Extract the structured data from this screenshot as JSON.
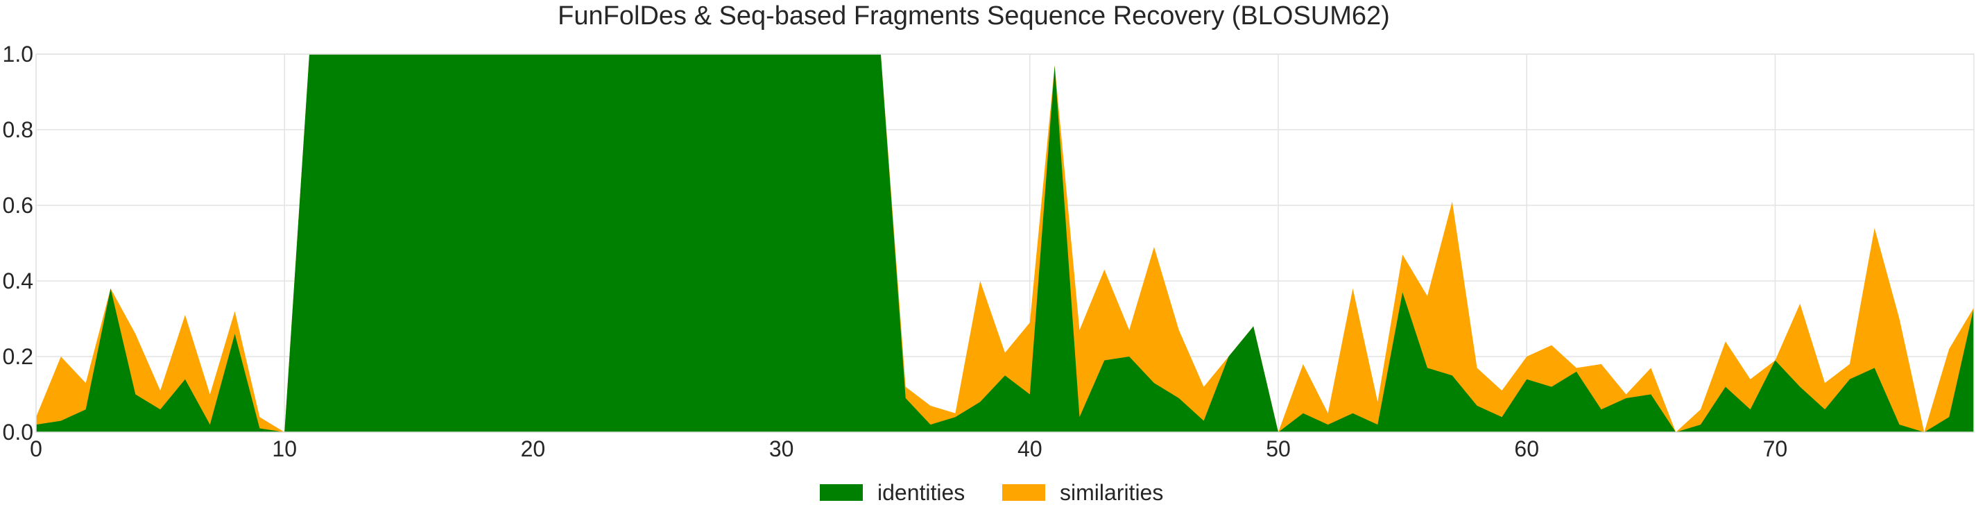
{
  "chart_data": {
    "type": "area",
    "title": "FunFolDes & Seq-based Fragments Sequence Recovery (BLOSUM62)",
    "xlabel": "",
    "ylabel": "",
    "xlim": [
      0,
      78
    ],
    "ylim": [
      0.0,
      1.0
    ],
    "grid": true,
    "legend_position": "bottom-center",
    "x_ticks": [
      0,
      10,
      20,
      30,
      40,
      50,
      60,
      70
    ],
    "y_ticks": [
      0.0,
      0.2,
      0.4,
      0.6,
      0.8,
      1.0
    ],
    "y_tick_labels": [
      "0.0",
      "0.2",
      "0.4",
      "0.6",
      "0.8",
      "1.0"
    ],
    "x": [
      0,
      1,
      2,
      3,
      4,
      5,
      6,
      7,
      8,
      9,
      10,
      11,
      12,
      13,
      14,
      15,
      16,
      17,
      18,
      19,
      20,
      21,
      22,
      23,
      24,
      25,
      26,
      27,
      28,
      29,
      30,
      31,
      32,
      33,
      34,
      35,
      36,
      37,
      38,
      39,
      40,
      41,
      42,
      43,
      44,
      45,
      46,
      47,
      48,
      49,
      50,
      51,
      52,
      53,
      54,
      55,
      56,
      57,
      58,
      59,
      60,
      61,
      62,
      63,
      64,
      65,
      66,
      67,
      68,
      69,
      70,
      71,
      72,
      73,
      74,
      75,
      76,
      77,
      78
    ],
    "series": [
      {
        "name": "similarities",
        "color": "#ffa500",
        "values": [
          0.04,
          0.2,
          0.13,
          0.38,
          0.26,
          0.11,
          0.31,
          0.1,
          0.32,
          0.04,
          0.0,
          1.0,
          1.0,
          1.0,
          1.0,
          1.0,
          1.0,
          1.0,
          1.0,
          1.0,
          1.0,
          1.0,
          1.0,
          1.0,
          1.0,
          1.0,
          1.0,
          1.0,
          1.0,
          1.0,
          1.0,
          1.0,
          1.0,
          1.0,
          1.0,
          0.12,
          0.07,
          0.05,
          0.4,
          0.21,
          0.29,
          0.97,
          0.27,
          0.43,
          0.27,
          0.49,
          0.27,
          0.12,
          0.2,
          0.28,
          0.0,
          0.18,
          0.05,
          0.38,
          0.08,
          0.47,
          0.36,
          0.61,
          0.17,
          0.11,
          0.2,
          0.23,
          0.17,
          0.18,
          0.1,
          0.17,
          0.0,
          0.06,
          0.24,
          0.14,
          0.19,
          0.34,
          0.13,
          0.18,
          0.54,
          0.3,
          0.0,
          0.22,
          0.33
        ]
      },
      {
        "name": "identities",
        "color": "#008000",
        "values": [
          0.02,
          0.03,
          0.06,
          0.38,
          0.1,
          0.06,
          0.14,
          0.02,
          0.26,
          0.01,
          0.0,
          1.0,
          1.0,
          1.0,
          1.0,
          1.0,
          1.0,
          1.0,
          1.0,
          1.0,
          1.0,
          1.0,
          1.0,
          1.0,
          1.0,
          1.0,
          1.0,
          1.0,
          1.0,
          1.0,
          1.0,
          1.0,
          1.0,
          1.0,
          1.0,
          0.09,
          0.02,
          0.04,
          0.08,
          0.15,
          0.1,
          0.97,
          0.04,
          0.19,
          0.2,
          0.13,
          0.09,
          0.03,
          0.2,
          0.28,
          0.0,
          0.05,
          0.02,
          0.05,
          0.02,
          0.37,
          0.17,
          0.15,
          0.07,
          0.04,
          0.14,
          0.12,
          0.16,
          0.06,
          0.09,
          0.1,
          0.0,
          0.02,
          0.12,
          0.06,
          0.19,
          0.12,
          0.06,
          0.14,
          0.17,
          0.02,
          0.0,
          0.04,
          0.33
        ]
      }
    ],
    "legend": [
      {
        "label": "identities",
        "color": "#008000"
      },
      {
        "label": "similarities",
        "color": "#ffa500"
      }
    ]
  }
}
